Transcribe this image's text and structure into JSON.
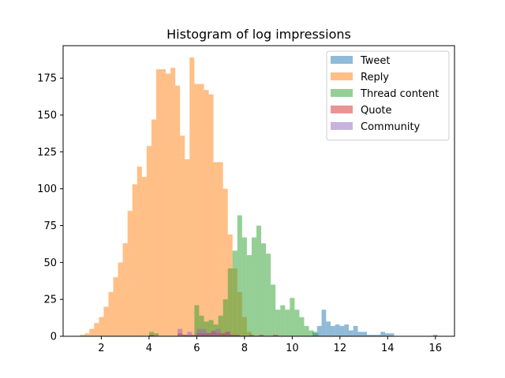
{
  "chart_data": {
    "type": "histogram",
    "title": "Histogram of log impressions",
    "xlabel": "",
    "ylabel": "",
    "xlim": [
      0.4,
      16.8
    ],
    "ylim": [
      0,
      197
    ],
    "x_ticks": [
      2,
      4,
      6,
      8,
      10,
      12,
      14,
      16
    ],
    "x_tick_labels": [
      "2",
      "4",
      "6",
      "8",
      "10",
      "12",
      "14",
      "16"
    ],
    "y_ticks": [
      0,
      25,
      50,
      75,
      100,
      125,
      150,
      175
    ],
    "y_tick_labels": [
      "0",
      "25",
      "50",
      "75",
      "100",
      "125",
      "150",
      "175"
    ],
    "legend_position": "top-right",
    "grid": false,
    "alpha": 0.5,
    "series": [
      {
        "name": "Tweet",
        "color": "#1f77b4",
        "bin_width": 0.19,
        "bins": [
          [
            10.85,
            3
          ],
          [
            11.04,
            7
          ],
          [
            11.23,
            18
          ],
          [
            11.42,
            10
          ],
          [
            11.61,
            7
          ],
          [
            11.8,
            8
          ],
          [
            11.99,
            7
          ],
          [
            12.18,
            8
          ],
          [
            12.37,
            4
          ],
          [
            12.56,
            7
          ],
          [
            12.75,
            3
          ],
          [
            12.94,
            3
          ],
          [
            13.13,
            1
          ],
          [
            13.32,
            1
          ],
          [
            13.51,
            1
          ],
          [
            13.7,
            3
          ],
          [
            13.89,
            2
          ],
          [
            14.08,
            2
          ],
          [
            15.9,
            1
          ]
        ]
      },
      {
        "name": "Reply",
        "color": "#ff7f0e",
        "bin_width": 0.2,
        "bins": [
          [
            1.1,
            1
          ],
          [
            1.3,
            2
          ],
          [
            1.5,
            5
          ],
          [
            1.7,
            9
          ],
          [
            1.9,
            13
          ],
          [
            2.1,
            20
          ],
          [
            2.3,
            30
          ],
          [
            2.5,
            40
          ],
          [
            2.7,
            50
          ],
          [
            2.9,
            63
          ],
          [
            3.1,
            85
          ],
          [
            3.3,
            103
          ],
          [
            3.5,
            115
          ],
          [
            3.7,
            108
          ],
          [
            3.9,
            129
          ],
          [
            4.1,
            147
          ],
          [
            4.3,
            181
          ],
          [
            4.5,
            181
          ],
          [
            4.7,
            178
          ],
          [
            4.9,
            182
          ],
          [
            5.1,
            170
          ],
          [
            5.3,
            136
          ],
          [
            5.5,
            120
          ],
          [
            5.7,
            189
          ],
          [
            5.9,
            171
          ],
          [
            6.1,
            171
          ],
          [
            6.3,
            167
          ],
          [
            6.5,
            164
          ],
          [
            6.7,
            118
          ],
          [
            6.9,
            118
          ],
          [
            7.1,
            100
          ],
          [
            7.3,
            69
          ],
          [
            7.5,
            46
          ],
          [
            7.7,
            30
          ],
          [
            7.9,
            13
          ],
          [
            8.1,
            3
          ]
        ]
      },
      {
        "name": "Thread content",
        "color": "#2ca02c",
        "bin_width": 0.2,
        "bins": [
          [
            4.0,
            3
          ],
          [
            4.2,
            2
          ],
          [
            5.9,
            21
          ],
          [
            6.1,
            14
          ],
          [
            6.3,
            10
          ],
          [
            6.5,
            11
          ],
          [
            6.7,
            8
          ],
          [
            6.9,
            14
          ],
          [
            7.1,
            25
          ],
          [
            7.3,
            46
          ],
          [
            7.5,
            58
          ],
          [
            7.7,
            82
          ],
          [
            7.9,
            67
          ],
          [
            8.1,
            55
          ],
          [
            8.3,
            67
          ],
          [
            8.5,
            75
          ],
          [
            8.7,
            63
          ],
          [
            8.9,
            56
          ],
          [
            9.1,
            35
          ],
          [
            9.3,
            18
          ],
          [
            9.5,
            21
          ],
          [
            9.7,
            18
          ],
          [
            9.9,
            26
          ],
          [
            10.1,
            18
          ],
          [
            10.3,
            13
          ],
          [
            10.5,
            7
          ],
          [
            10.7,
            4
          ],
          [
            10.9,
            2
          ]
        ]
      },
      {
        "name": "Quote",
        "color": "#d62728",
        "bin_width": 0.2,
        "bins": [
          [
            4.0,
            1
          ],
          [
            5.2,
            2
          ],
          [
            5.4,
            1
          ],
          [
            5.6,
            1
          ],
          [
            5.8,
            1
          ],
          [
            6.0,
            2
          ],
          [
            6.2,
            2
          ],
          [
            6.4,
            2
          ],
          [
            6.6,
            3
          ],
          [
            6.8,
            2
          ],
          [
            7.0,
            2
          ],
          [
            7.2,
            3
          ],
          [
            7.4,
            1
          ],
          [
            7.6,
            1
          ],
          [
            8.2,
            1
          ],
          [
            8.6,
            1
          ],
          [
            9.2,
            1
          ]
        ]
      },
      {
        "name": "Community",
        "color": "#9467bd",
        "bin_width": 0.2,
        "bins": [
          [
            5.2,
            5
          ],
          [
            5.4,
            1
          ],
          [
            5.6,
            3
          ],
          [
            5.8,
            1
          ],
          [
            6.0,
            5
          ],
          [
            6.2,
            5
          ],
          [
            6.4,
            2
          ],
          [
            6.6,
            4
          ],
          [
            6.8,
            5
          ],
          [
            7.0,
            1
          ],
          [
            7.2,
            3
          ]
        ]
      }
    ]
  }
}
